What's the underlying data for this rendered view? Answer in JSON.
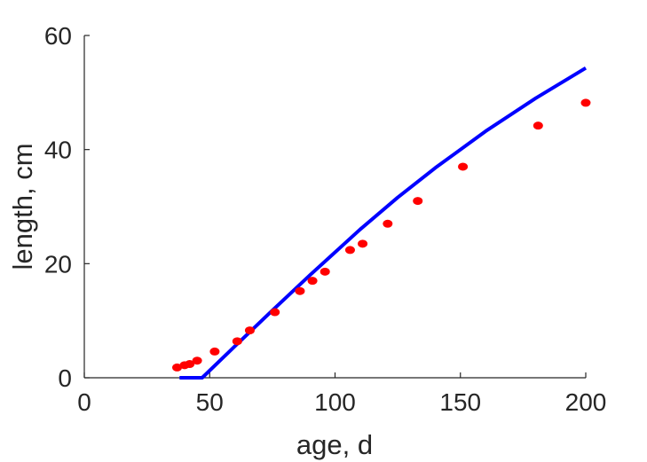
{
  "chart_data": {
    "type": "scatter",
    "title": "",
    "xlabel": "age, d",
    "ylabel": "length, cm",
    "xlim": [
      0,
      200
    ],
    "ylim": [
      0,
      60
    ],
    "xticks": [
      0,
      50,
      100,
      150,
      200
    ],
    "yticks": [
      0,
      20,
      40,
      60
    ],
    "grid": false,
    "legend": "none",
    "series": [
      {
        "kind": "scatter",
        "color": "#ff0000",
        "x": [
          37,
          40,
          42,
          45,
          52,
          61,
          66,
          76,
          86,
          91,
          96,
          106,
          111,
          121,
          133,
          151,
          181,
          200
        ],
        "y": [
          1.8,
          2.2,
          2.4,
          3.0,
          4.6,
          6.4,
          8.3,
          11.5,
          15.2,
          17.0,
          18.6,
          22.4,
          23.5,
          27.0,
          31.0,
          37.0,
          44.2,
          48.2
        ]
      },
      {
        "kind": "line",
        "color": "#0000ff",
        "x": [
          38,
          47,
          60,
          75,
          90,
          100,
          110,
          125,
          140,
          160,
          180,
          200
        ],
        "y": [
          0,
          0,
          5.5,
          11.8,
          18.0,
          22.0,
          26.0,
          31.6,
          36.8,
          43.2,
          49.0,
          54.3
        ]
      }
    ]
  }
}
